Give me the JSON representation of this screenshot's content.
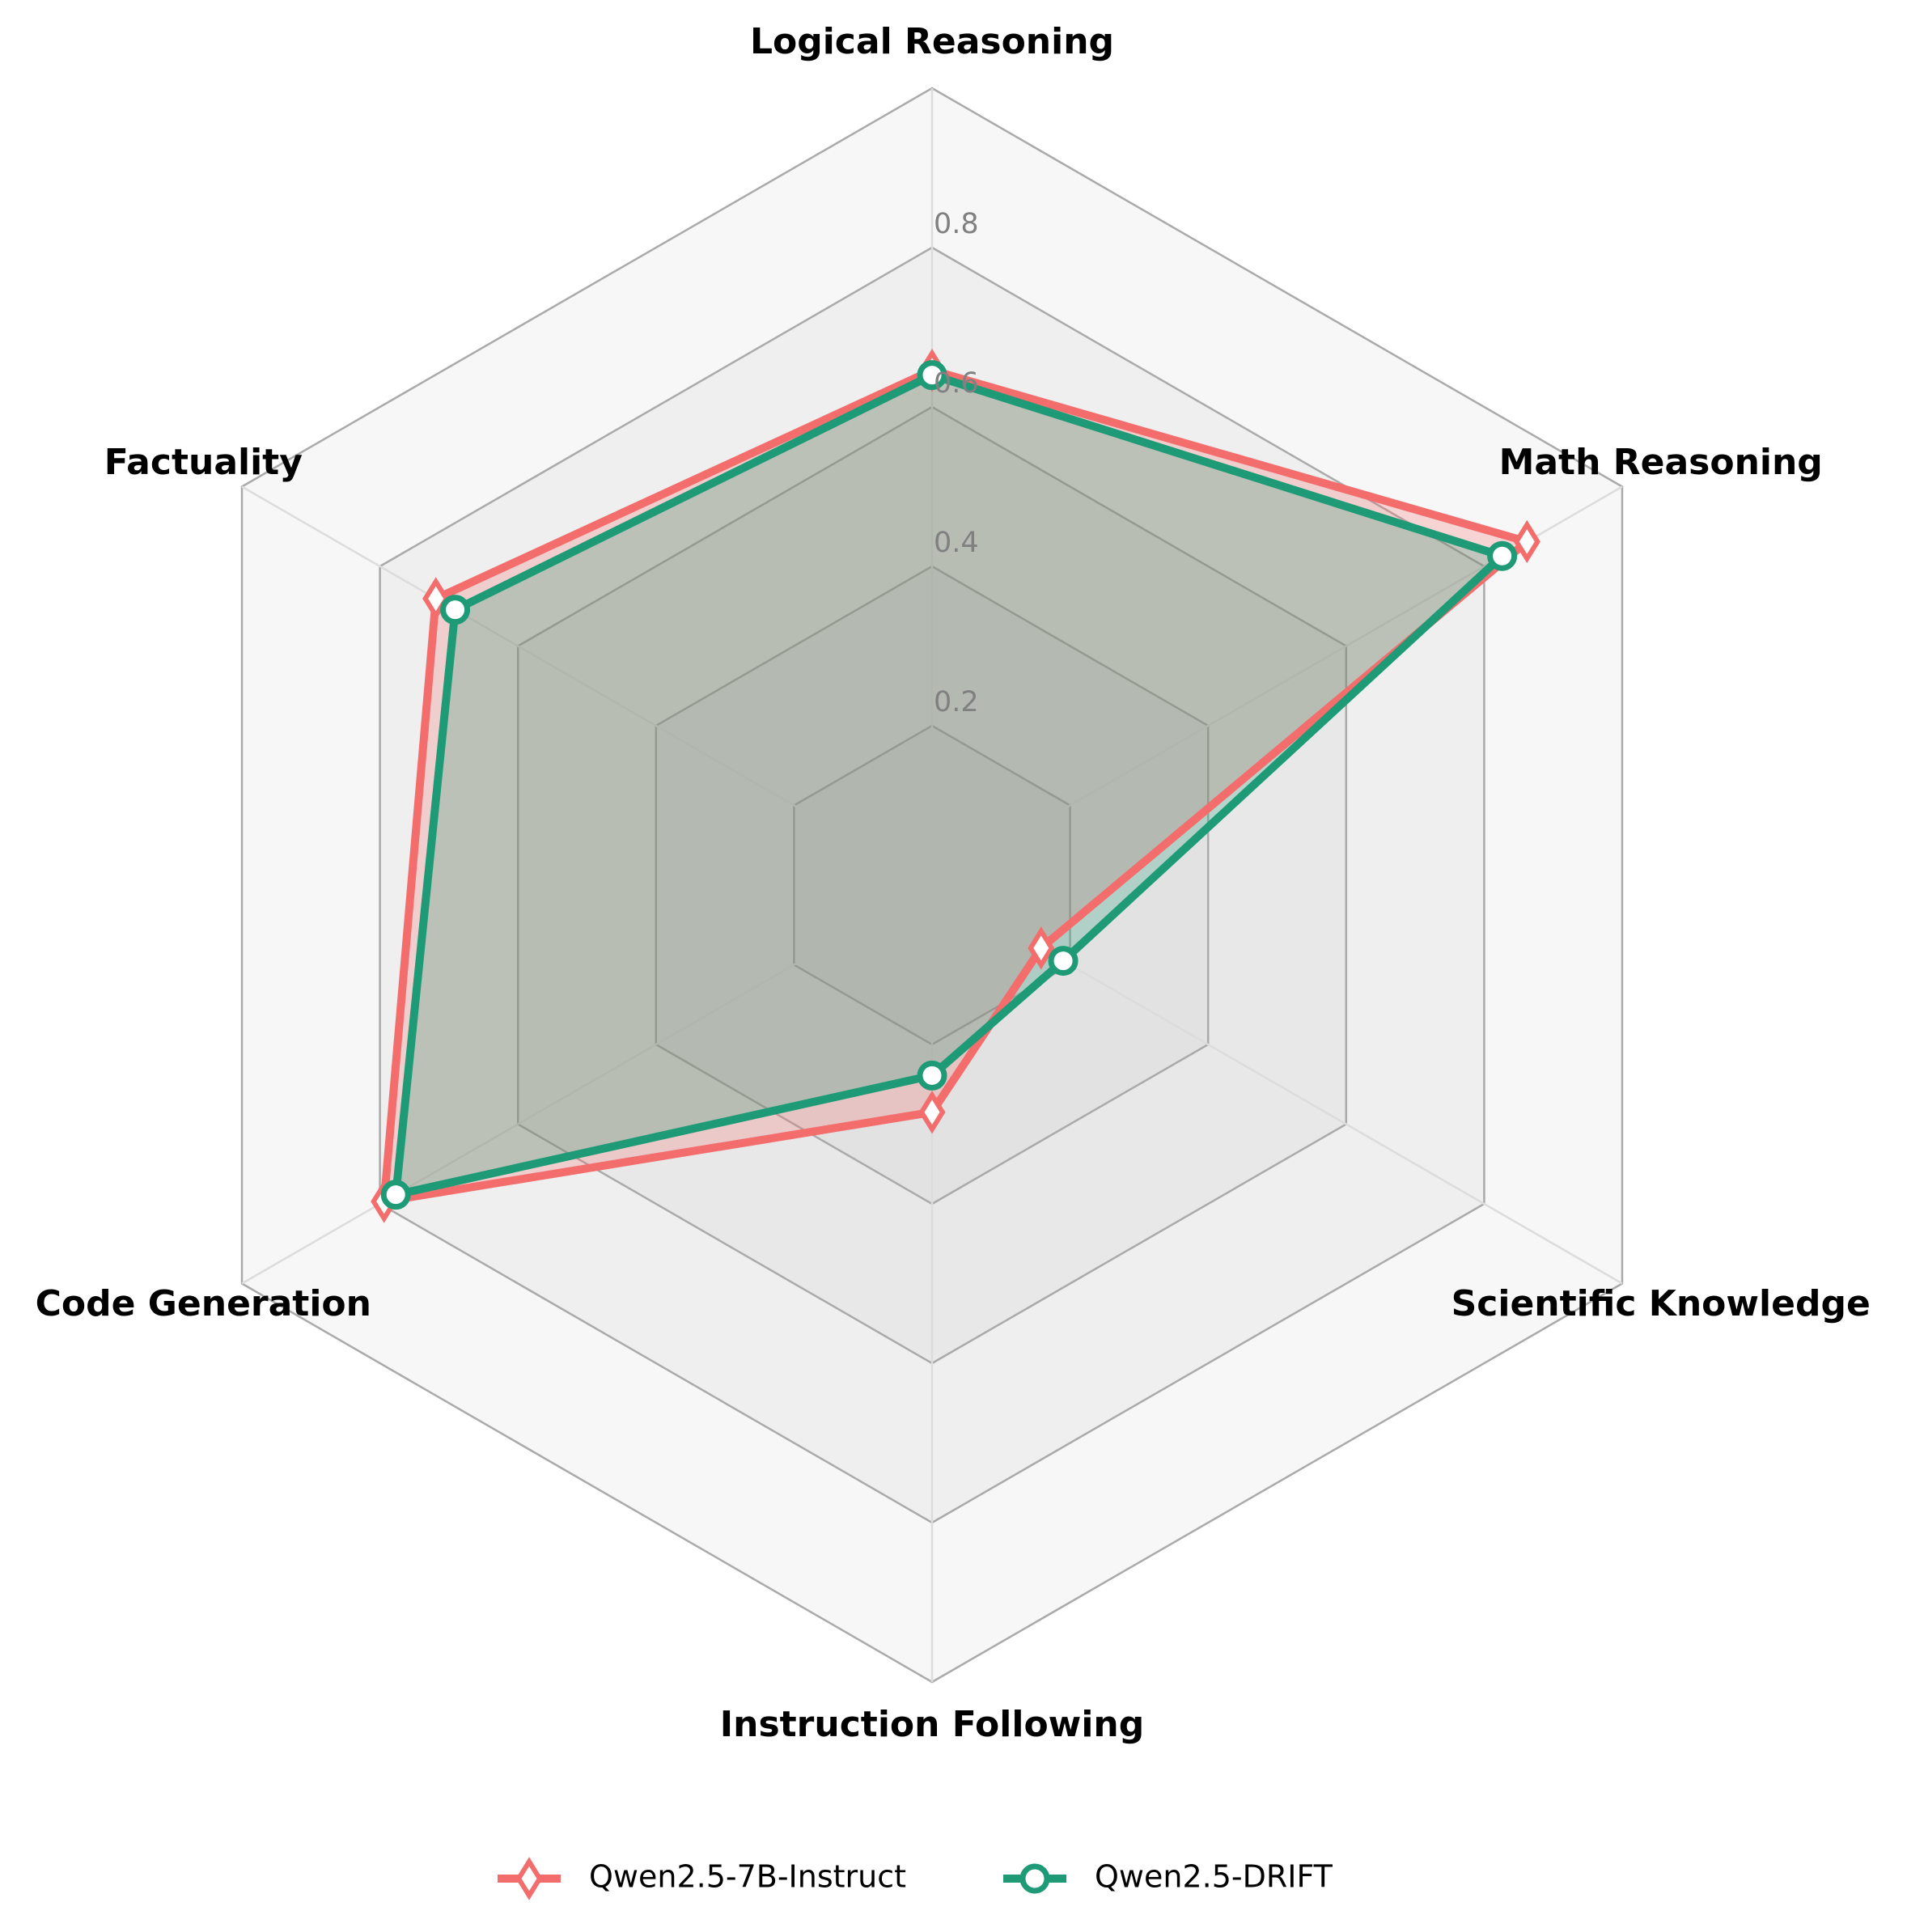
{
  "chart_data": {
    "type": "radar",
    "categories": [
      "Logical Reasoning",
      "Math Reasoning",
      "Scientific Knowledge",
      "Instruction Following",
      "Code Generation",
      "Factuality"
    ],
    "rlim": [
      0,
      1.0
    ],
    "ticks": [
      0.2,
      0.4,
      0.6,
      0.8
    ],
    "tick_labels": [
      "0.2",
      "0.4",
      "0.6",
      "0.8"
    ],
    "grid": true,
    "legend_position": "bottom-center",
    "series": [
      {
        "name": "Qwen2.5-7B-Instruct",
        "values": [
          0.646,
          0.862,
          0.158,
          0.285,
          0.794,
          0.719
        ],
        "color": "#F46D6D",
        "marker": "diamond"
      },
      {
        "name": "Qwen2.5-DRIFT",
        "values": [
          0.64,
          0.826,
          0.19,
          0.239,
          0.777,
          0.691
        ],
        "color": "#1E9B76",
        "marker": "circle"
      }
    ]
  }
}
